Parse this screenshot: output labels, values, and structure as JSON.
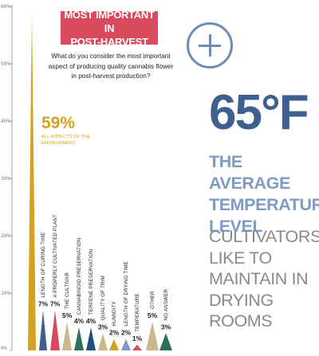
{
  "header": {
    "title_line1": "MOST IMPORTANT IN",
    "title_line2": "POST-HARVEST",
    "question": "What do you consider the most important aspect of producing quality cannabis flower in post-harvest production?"
  },
  "highlight": {
    "value": "59%",
    "note": "ALL ASPECTS OF THE ENVIRONMENT"
  },
  "stat": {
    "icon": "plus-circle-icon",
    "value": "65°F",
    "strong_text": "THE AVERAGE TEMPERATURE LEVEL",
    "light_text": "CULTIVATORS LIKE TO MAINTAIN IN DRYING ROOMS"
  },
  "colors": {
    "accent_red": "#d94a5e",
    "gold": "#d4a21f",
    "blue_dark": "#3f5f8f",
    "blue_light": "#7f9bc3",
    "plus_icon": "#6e8cb2",
    "text_gray": "#8a8a8a"
  },
  "chart_data": {
    "type": "bar",
    "title": "",
    "xlabel": "",
    "ylabel": "",
    "ylim": [
      0,
      60
    ],
    "yticks": [
      "0%",
      "10%",
      "20%",
      "30%",
      "40%",
      "50%",
      "60%"
    ],
    "grid": false,
    "categories": [
      "ALL ASPECTS OF THE ENVIRONMENT",
      "LENGTH OF CURING TIME",
      "A PROPERLY CULTIVATED PLANT",
      "THE CULTIVAR",
      "CANNABINOID PRESERVATION",
      "TERPENE PRESERVATION",
      "QUALITY OF TRIM",
      "HUMIDITY",
      "LENGTH OF DRYING TIME",
      "TEMPERATURE",
      "OTHER",
      "NO ANSWER"
    ],
    "values": [
      59,
      7,
      7,
      5,
      4,
      4,
      3,
      2,
      2,
      1,
      5,
      3
    ],
    "value_labels": [
      "",
      "7%",
      "7%",
      "5%",
      "4%",
      "4%",
      "3%",
      "2%",
      "2%",
      "1%",
      "5%",
      "3%"
    ],
    "colors": [
      "#d4a21f",
      "#3f5f8f",
      "#d94a5e",
      "#c9b98a",
      "#2f6e5a",
      "#1f4f7a",
      "#c9b98a",
      "#d4a21f",
      "#7f9bc3",
      "#d94a5e",
      "#c9b98a",
      "#2f6e5a"
    ]
  }
}
